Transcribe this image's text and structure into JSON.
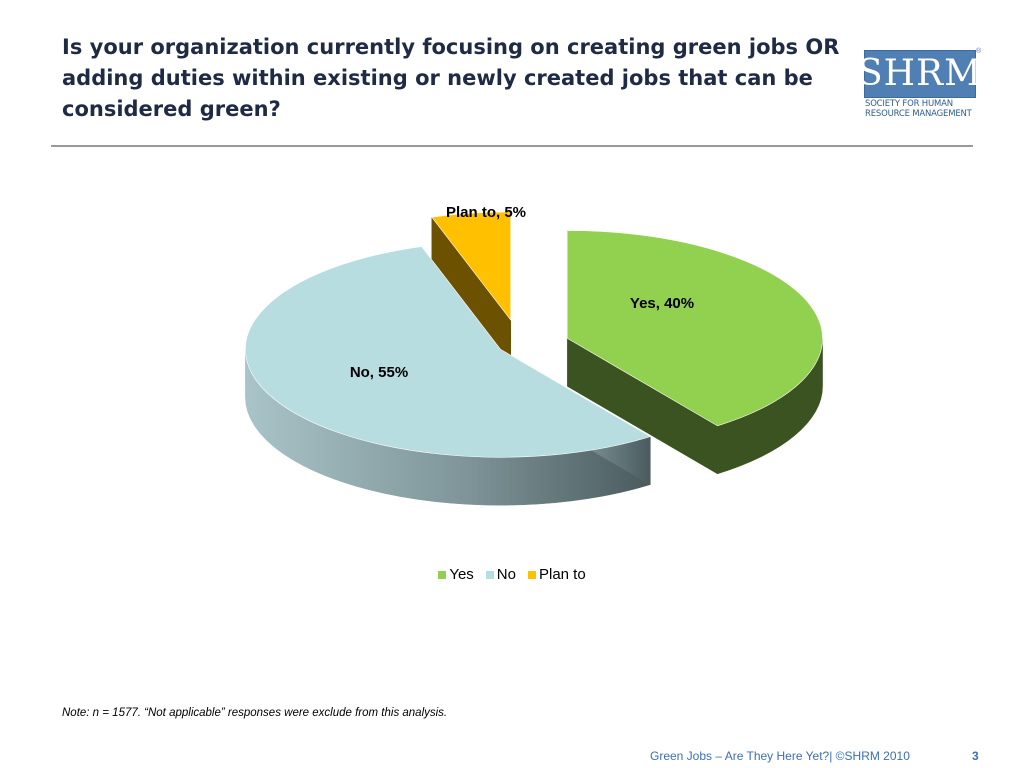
{
  "slide": {
    "title": "Is your organization currently focusing on creating green jobs OR adding duties within existing or newly created jobs that can be considered green?",
    "note": "Note: n = 1577. “Not applicable” responses were exclude from this analysis.",
    "footer": "Green Jobs – Are They Here Yet?| ©SHRM 2010",
    "page_number": "3"
  },
  "logo": {
    "letters": "SHRM",
    "registered": "®",
    "line1": "SOCIETY FOR HUMAN",
    "line2": "RESOURCE MANAGEMENT"
  },
  "chart_data": {
    "type": "pie",
    "title": "",
    "style": "3d-exploded",
    "categories": [
      "Yes",
      "No",
      "Plan to"
    ],
    "values": [
      40,
      55,
      5
    ],
    "unit": "%",
    "data_labels": [
      "Yes, 40%",
      "No, 55%",
      "Plan to, 5%"
    ],
    "colors": [
      "#92d050",
      "#b7dde0",
      "#ffc000"
    ],
    "side_colors": [
      "#3b5321",
      "#6e8a90",
      "#6b5100"
    ],
    "legend": {
      "position": "bottom",
      "entries": [
        "Yes",
        "No",
        "Plan to"
      ]
    }
  }
}
